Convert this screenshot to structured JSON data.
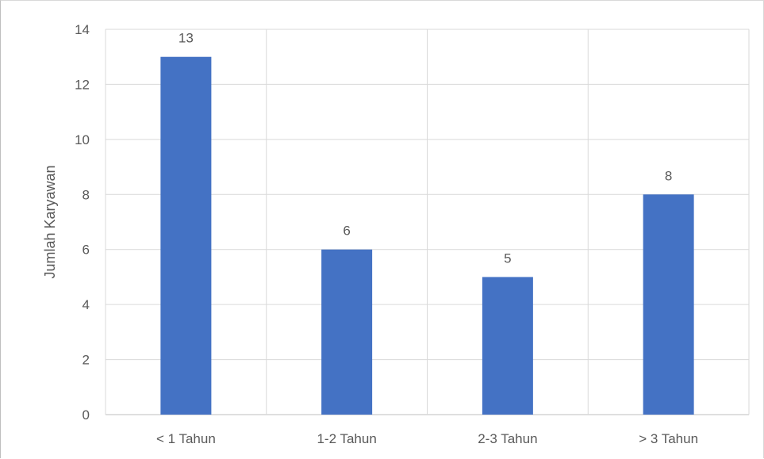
{
  "chart_data": {
    "type": "bar",
    "categories": [
      "< 1 Tahun",
      "1-2 Tahun",
      "2-3 Tahun",
      "> 3 Tahun"
    ],
    "values": [
      13,
      6,
      5,
      8
    ],
    "data_labels": [
      "13",
      "6",
      "5",
      "8"
    ],
    "title": "",
    "xlabel": "",
    "ylabel": "Jumlah Karyawan",
    "ylim": [
      0,
      14
    ],
    "yticks": [
      0,
      2,
      4,
      6,
      8,
      10,
      12,
      14
    ],
    "grid": true,
    "legend": "none",
    "bar_color": "#4472c4",
    "grid_color": "#d9d9d9"
  }
}
